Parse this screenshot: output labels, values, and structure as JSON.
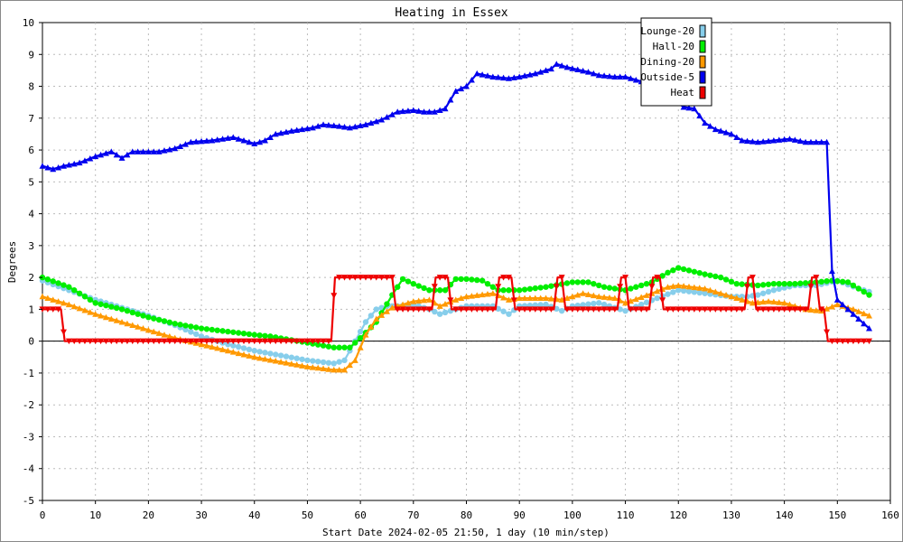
{
  "chart_data": {
    "type": "line",
    "title": "Heating in Essex",
    "xlabel": "Start Date 2024-02-05 21:50, 1 day (10 min/step)",
    "ylabel": "Degrees",
    "xlim": [
      0,
      160
    ],
    "ylim": [
      -5,
      10
    ],
    "xticks": [
      0,
      10,
      20,
      30,
      40,
      50,
      60,
      70,
      80,
      90,
      100,
      110,
      120,
      130,
      140,
      150,
      160
    ],
    "yticks": [
      -5,
      -4,
      -3,
      -2,
      -1,
      0,
      1,
      2,
      3,
      4,
      5,
      6,
      7,
      8,
      9,
      10
    ],
    "grid": true,
    "legend_position": "top-right",
    "series": [
      {
        "name": "Lounge-20",
        "color": "#87CEEB",
        "marker": "circle",
        "points": [
          [
            0,
            1.9
          ],
          [
            5,
            1.6
          ],
          [
            10,
            1.3
          ],
          [
            15,
            1.05
          ],
          [
            20,
            0.8
          ],
          [
            25,
            0.5
          ],
          [
            30,
            0.15
          ],
          [
            35,
            -0.1
          ],
          [
            40,
            -0.3
          ],
          [
            45,
            -0.45
          ],
          [
            50,
            -0.6
          ],
          [
            55,
            -0.7
          ],
          [
            57,
            -0.6
          ],
          [
            59,
            0.0
          ],
          [
            61,
            0.6
          ],
          [
            63,
            1.0
          ],
          [
            65,
            1.1
          ],
          [
            67,
            1.1
          ],
          [
            70,
            1.15
          ],
          [
            73,
            1.0
          ],
          [
            75,
            0.85
          ],
          [
            77,
            0.95
          ],
          [
            80,
            1.1
          ],
          [
            85,
            1.1
          ],
          [
            88,
            0.85
          ],
          [
            90,
            1.1
          ],
          [
            95,
            1.15
          ],
          [
            98,
            0.95
          ],
          [
            100,
            1.1
          ],
          [
            105,
            1.2
          ],
          [
            108,
            1.05
          ],
          [
            110,
            0.95
          ],
          [
            113,
            1.15
          ],
          [
            116,
            1.35
          ],
          [
            120,
            1.6
          ],
          [
            125,
            1.5
          ],
          [
            130,
            1.4
          ],
          [
            133,
            1.4
          ],
          [
            135,
            1.45
          ],
          [
            138,
            1.6
          ],
          [
            142,
            1.75
          ],
          [
            146,
            1.75
          ],
          [
            150,
            1.9
          ],
          [
            154,
            1.65
          ],
          [
            156,
            1.55
          ]
        ]
      },
      {
        "name": "Hall-20",
        "color": "#00EE00",
        "marker": "circle",
        "points": [
          [
            0,
            2.0
          ],
          [
            5,
            1.7
          ],
          [
            10,
            1.2
          ],
          [
            15,
            1.0
          ],
          [
            20,
            0.75
          ],
          [
            25,
            0.55
          ],
          [
            30,
            0.4
          ],
          [
            35,
            0.3
          ],
          [
            40,
            0.2
          ],
          [
            43,
            0.15
          ],
          [
            50,
            -0.05
          ],
          [
            55,
            -0.2
          ],
          [
            58,
            -0.2
          ],
          [
            60,
            0.1
          ],
          [
            63,
            0.6
          ],
          [
            66,
            1.45
          ],
          [
            68,
            1.95
          ],
          [
            70,
            1.8
          ],
          [
            73,
            1.6
          ],
          [
            76,
            1.6
          ],
          [
            78,
            1.95
          ],
          [
            80,
            1.95
          ],
          [
            83,
            1.9
          ],
          [
            86,
            1.6
          ],
          [
            90,
            1.6
          ],
          [
            95,
            1.7
          ],
          [
            100,
            1.85
          ],
          [
            103,
            1.85
          ],
          [
            106,
            1.7
          ],
          [
            110,
            1.6
          ],
          [
            115,
            1.85
          ],
          [
            118,
            2.15
          ],
          [
            120,
            2.3
          ],
          [
            125,
            2.1
          ],
          [
            128,
            2.0
          ],
          [
            131,
            1.8
          ],
          [
            135,
            1.75
          ],
          [
            138,
            1.8
          ],
          [
            142,
            1.8
          ],
          [
            146,
            1.85
          ],
          [
            149,
            1.9
          ],
          [
            152,
            1.85
          ],
          [
            154,
            1.65
          ],
          [
            156,
            1.45
          ]
        ]
      },
      {
        "name": "Dining-20",
        "color": "#FF9900",
        "marker": "triangle",
        "points": [
          [
            0,
            1.4
          ],
          [
            5,
            1.15
          ],
          [
            10,
            0.85
          ],
          [
            15,
            0.6
          ],
          [
            20,
            0.35
          ],
          [
            25,
            0.1
          ],
          [
            30,
            -0.1
          ],
          [
            35,
            -0.3
          ],
          [
            40,
            -0.5
          ],
          [
            45,
            -0.65
          ],
          [
            50,
            -0.8
          ],
          [
            55,
            -0.9
          ],
          [
            57,
            -0.9
          ],
          [
            59,
            -0.6
          ],
          [
            61,
            0.2
          ],
          [
            63,
            0.7
          ],
          [
            66,
            1.05
          ],
          [
            70,
            1.25
          ],
          [
            73,
            1.3
          ],
          [
            75,
            1.1
          ],
          [
            78,
            1.3
          ],
          [
            80,
            1.4
          ],
          [
            85,
            1.5
          ],
          [
            88,
            1.3
          ],
          [
            90,
            1.35
          ],
          [
            95,
            1.35
          ],
          [
            98,
            1.3
          ],
          [
            102,
            1.5
          ],
          [
            105,
            1.4
          ],
          [
            108,
            1.35
          ],
          [
            110,
            1.2
          ],
          [
            115,
            1.5
          ],
          [
            118,
            1.7
          ],
          [
            120,
            1.75
          ],
          [
            125,
            1.65
          ],
          [
            128,
            1.5
          ],
          [
            132,
            1.3
          ],
          [
            134,
            1.2
          ],
          [
            137,
            1.25
          ],
          [
            140,
            1.2
          ],
          [
            144,
            1.0
          ],
          [
            147,
            0.95
          ],
          [
            150,
            1.15
          ],
          [
            153,
            1.0
          ],
          [
            156,
            0.8
          ]
        ]
      },
      {
        "name": "Outside-5",
        "color": "#0000EE",
        "marker": "triangle",
        "points": [
          [
            0,
            5.5
          ],
          [
            2,
            5.4
          ],
          [
            4,
            5.5
          ],
          [
            7,
            5.6
          ],
          [
            10,
            5.8
          ],
          [
            13,
            5.95
          ],
          [
            15,
            5.75
          ],
          [
            17,
            5.95
          ],
          [
            22,
            5.95
          ],
          [
            25,
            6.05
          ],
          [
            28,
            6.25
          ],
          [
            32,
            6.3
          ],
          [
            36,
            6.4
          ],
          [
            38,
            6.3
          ],
          [
            40,
            6.2
          ],
          [
            42,
            6.3
          ],
          [
            44,
            6.5
          ],
          [
            47,
            6.6
          ],
          [
            51,
            6.7
          ],
          [
            53,
            6.8
          ],
          [
            56,
            6.75
          ],
          [
            58,
            6.7
          ],
          [
            61,
            6.8
          ],
          [
            64,
            6.95
          ],
          [
            67,
            7.2
          ],
          [
            70,
            7.25
          ],
          [
            72,
            7.2
          ],
          [
            74,
            7.2
          ],
          [
            76,
            7.3
          ],
          [
            78,
            7.85
          ],
          [
            80,
            8.0
          ],
          [
            82,
            8.4
          ],
          [
            85,
            8.3
          ],
          [
            88,
            8.25
          ],
          [
            90,
            8.3
          ],
          [
            93,
            8.4
          ],
          [
            96,
            8.55
          ],
          [
            97,
            8.7
          ],
          [
            99,
            8.6
          ],
          [
            103,
            8.45
          ],
          [
            105,
            8.35
          ],
          [
            108,
            8.3
          ],
          [
            110,
            8.3
          ],
          [
            113,
            8.15
          ],
          [
            116,
            7.85
          ],
          [
            118,
            7.7
          ],
          [
            121,
            7.35
          ],
          [
            123,
            7.3
          ],
          [
            125,
            6.85
          ],
          [
            127,
            6.65
          ],
          [
            130,
            6.5
          ],
          [
            132,
            6.3
          ],
          [
            135,
            6.25
          ],
          [
            138,
            6.3
          ],
          [
            141,
            6.35
          ],
          [
            144,
            6.25
          ],
          [
            148,
            6.25
          ],
          [
            149,
            2.2
          ],
          [
            150,
            1.3
          ],
          [
            152,
            1.0
          ],
          [
            154,
            0.7
          ],
          [
            155,
            0.55
          ],
          [
            156,
            0.4
          ]
        ]
      },
      {
        "name": "Heat",
        "color": "#EE0000",
        "marker": "triangle-down",
        "points": [
          [
            0,
            1.0
          ],
          [
            3.5,
            1.0
          ],
          [
            4.2,
            0.0
          ],
          [
            54.5,
            0.0
          ],
          [
            55.2,
            2.0
          ],
          [
            66,
            2.0
          ],
          [
            66.7,
            1.0
          ],
          [
            73.5,
            1.0
          ],
          [
            74.2,
            2.0
          ],
          [
            76.5,
            2.0
          ],
          [
            77.2,
            1.0
          ],
          [
            85.5,
            1.0
          ],
          [
            86.2,
            2.0
          ],
          [
            88.5,
            2.0
          ],
          [
            89.2,
            1.0
          ],
          [
            96.5,
            1.0
          ],
          [
            97.2,
            2.0
          ],
          [
            98,
            2.0
          ],
          [
            98.7,
            1.0
          ],
          [
            108.5,
            1.0
          ],
          [
            109.2,
            2.0
          ],
          [
            110,
            2.0
          ],
          [
            110.7,
            1.0
          ],
          [
            114.5,
            1.0
          ],
          [
            115.2,
            2.0
          ],
          [
            116.5,
            2.0
          ],
          [
            117.2,
            1.0
          ],
          [
            132.5,
            1.0
          ],
          [
            133.2,
            2.0
          ],
          [
            134,
            2.0
          ],
          [
            134.7,
            1.0
          ],
          [
            144.5,
            1.0
          ],
          [
            145.2,
            2.0
          ],
          [
            146,
            2.0
          ],
          [
            146.7,
            1.0
          ],
          [
            147.5,
            1.0
          ],
          [
            148.2,
            0.0
          ],
          [
            156,
            0.0
          ]
        ]
      }
    ]
  }
}
